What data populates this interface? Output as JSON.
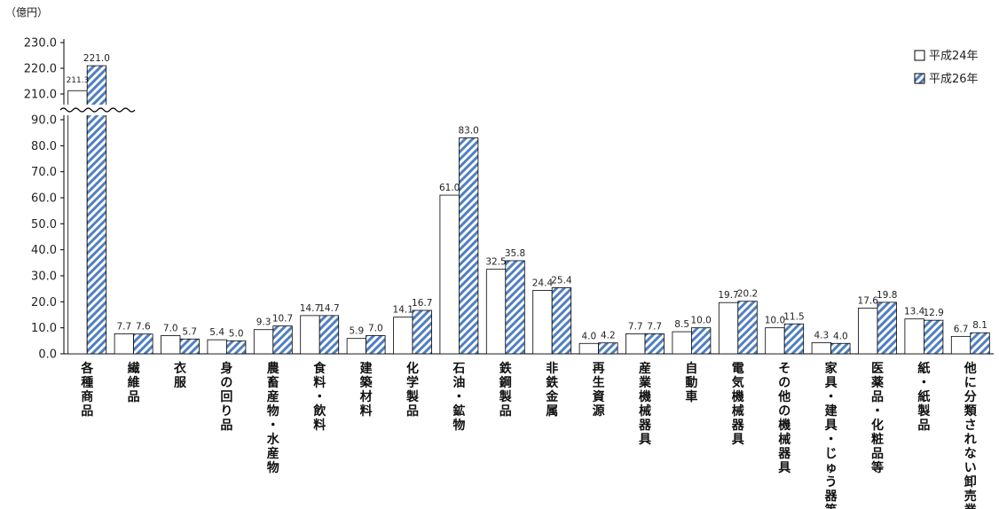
{
  "chart_data": {
    "type": "bar",
    "unit_label": "（億円）",
    "categories": [
      "各種商品",
      "繊維品",
      "衣服",
      "身の回り品",
      "農畜産物・水産物",
      "食料・飲料",
      "建築材料",
      "化学製品",
      "石油・鉱物",
      "鉄鋼製品",
      "非鉄金属",
      "再生資源",
      "産業機械器具",
      "自動車",
      "電気機械器具",
      "その他の機械器具",
      "家具・建具・じゅう器等",
      "医薬品・化粧品等",
      "紙・紙製品",
      "他に分類されない卸売業"
    ],
    "series": [
      {
        "name": "平成24年",
        "values": [
          211.3,
          7.7,
          7.0,
          5.4,
          9.3,
          14.7,
          5.9,
          14.1,
          61.0,
          32.5,
          24.4,
          4.0,
          7.7,
          8.5,
          19.7,
          10.0,
          4.3,
          17.6,
          13.4,
          6.7
        ],
        "labels": [
          "211.3",
          "7.7",
          "7.0",
          "5.4",
          "9.3",
          "14.7",
          "5.9",
          "14.1",
          "61.0",
          "32.5",
          "24.4",
          "4.0",
          "7.7",
          "8.5",
          "19.7",
          "10.0",
          "4.3",
          "17.6",
          "13.4",
          "6.7"
        ]
      },
      {
        "name": "平成26年",
        "values": [
          221.0,
          7.6,
          5.7,
          5.0,
          10.7,
          14.7,
          7.0,
          16.7,
          83.0,
          35.8,
          25.4,
          4.2,
          7.7,
          10.0,
          20.2,
          11.5,
          4.0,
          19.8,
          12.9,
          8.1
        ],
        "labels": [
          "221.0",
          "7.6",
          "5.7",
          "5.0",
          "10.7",
          "14.7",
          "7.0",
          "16.7",
          "83.0",
          "35.8",
          "25.4",
          "4.2",
          "7.7",
          "10.0",
          "20.2",
          "11.5",
          "4.0",
          "19.8",
          "12.9",
          "8.1"
        ]
      }
    ],
    "y_ticks_lower": [
      "0.0",
      "10.0",
      "20.0",
      "30.0",
      "40.0",
      "50.0",
      "60.0",
      "70.0",
      "80.0",
      "90.0"
    ],
    "y_ticks_upper": [
      "210.0",
      "220.0",
      "230.0"
    ],
    "ylim_lower": [
      0,
      90
    ],
    "ylim_upper": [
      210,
      230
    ],
    "axis_break": true,
    "legend_position": "top-right",
    "series_colors": [
      "#ffffff",
      "#4f7fc0"
    ]
  }
}
